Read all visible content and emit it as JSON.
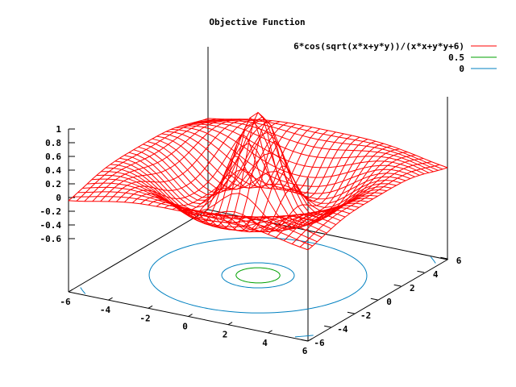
{
  "chart_data": {
    "type": "surface3d",
    "title": "Objective Function",
    "function": "6*cos(sqrt(x*x+y*y))/(x*x+y*y+6)",
    "xlim": [
      -6,
      6
    ],
    "ylim": [
      -6,
      6
    ],
    "zlim": [
      -0.6,
      1
    ],
    "x_ticks": [
      -6,
      -4,
      -2,
      0,
      2,
      4,
      6
    ],
    "y_ticks": [
      -6,
      -4,
      -2,
      0,
      2,
      4,
      6
    ],
    "z_ticks": [
      1,
      0.8,
      0.6,
      0.4,
      0.2,
      0,
      -0.2,
      -0.4,
      -0.6
    ],
    "z_tick_labels": [
      "1",
      "0.8",
      "0.6",
      "0.4",
      "0.2",
      "0",
      "-0.2",
      "-0.4",
      "-0.6"
    ],
    "grid_samples": 31,
    "legend": [
      {
        "label": "6*cos(sqrt(x*x+y*y))/(x*x+y*y+6)",
        "color": "#ff0000"
      },
      {
        "label": "0.5",
        "color": "#00a000"
      },
      {
        "label": "0",
        "color": "#0080c0"
      }
    ],
    "contour_levels": [
      0.5,
      0
    ],
    "legend_position": "top-right",
    "colors": {
      "surface": "#ff0000",
      "contour_high": "#00a000",
      "contour_zero": "#0080c0",
      "axes": "#000000"
    }
  }
}
